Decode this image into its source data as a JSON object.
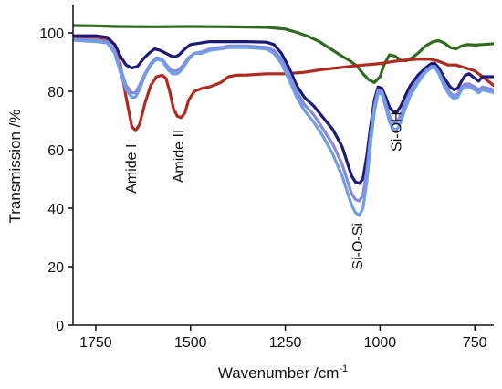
{
  "chart_data": {
    "type": "line",
    "xlabel": "Wavenumber /cm",
    "xlabel_superscript": "-1",
    "ylabel": "Transmission /%",
    "xlim": [
      1810,
      700
    ],
    "ylim": [
      0,
      110
    ],
    "x_reversed": true,
    "x_ticks": [
      1750,
      1500,
      1250,
      1000,
      750
    ],
    "x_tick_labels": [
      "1750",
      "1500",
      "1250",
      "1000",
      "750"
    ],
    "y_ticks": [
      0,
      20,
      40,
      60,
      80,
      100
    ],
    "y_tick_labels": [
      "0",
      "20",
      "40",
      "60",
      "80",
      "100"
    ],
    "grid": false,
    "annotations": [
      {
        "text": "Amide I",
        "x": 1655,
        "y": 62,
        "rotation": -90
      },
      {
        "text": "Amide II",
        "x": 1530,
        "y": 67,
        "rotation": -90
      },
      {
        "text": "Si-O-Si",
        "x": 1058,
        "y": 35,
        "rotation": -90
      },
      {
        "text": "Si-OH",
        "x": 955,
        "y": 73,
        "rotation": -90
      }
    ],
    "series": [
      {
        "color": "#2e6b1f",
        "points": [
          [
            1810,
            102.5
          ],
          [
            1750,
            102.4
          ],
          [
            1700,
            102.2
          ],
          [
            1600,
            102.1
          ],
          [
            1500,
            102.2
          ],
          [
            1400,
            102.1
          ],
          [
            1300,
            101.9
          ],
          [
            1250,
            101.3
          ],
          [
            1220,
            100.2
          ],
          [
            1190,
            98.8
          ],
          [
            1160,
            97.0
          ],
          [
            1130,
            94.5
          ],
          [
            1100,
            92.0
          ],
          [
            1080,
            90.5
          ],
          [
            1060,
            88.5
          ],
          [
            1045,
            86.0
          ],
          [
            1030,
            84.0
          ],
          [
            1015,
            83.0
          ],
          [
            1000,
            85.0
          ],
          [
            990,
            89.0
          ],
          [
            975,
            92.5
          ],
          [
            960,
            92.0
          ],
          [
            945,
            90.5
          ],
          [
            930,
            90.5
          ],
          [
            915,
            91.5
          ],
          [
            900,
            93.0
          ],
          [
            880,
            95.5
          ],
          [
            860,
            97.0
          ],
          [
            845,
            97.3
          ],
          [
            830,
            96.5
          ],
          [
            815,
            95.0
          ],
          [
            800,
            94.5
          ],
          [
            785,
            95.5
          ],
          [
            770,
            96.0
          ],
          [
            750,
            95.8
          ],
          [
            730,
            96.0
          ],
          [
            710,
            96.2
          ],
          [
            700,
            96.3
          ]
        ]
      },
      {
        "color": "#b02a1f",
        "points": [
          [
            1810,
            98.5
          ],
          [
            1750,
            98.6
          ],
          [
            1720,
            98.0
          ],
          [
            1700,
            96.0
          ],
          [
            1685,
            89.0
          ],
          [
            1670,
            78.0
          ],
          [
            1655,
            68.0
          ],
          [
            1645,
            66.5
          ],
          [
            1635,
            68.5
          ],
          [
            1620,
            76.0
          ],
          [
            1605,
            82.0
          ],
          [
            1590,
            85.0
          ],
          [
            1575,
            85.5
          ],
          [
            1565,
            84.5
          ],
          [
            1555,
            80.0
          ],
          [
            1545,
            74.0
          ],
          [
            1535,
            71.5
          ],
          [
            1525,
            71.0
          ],
          [
            1515,
            72.5
          ],
          [
            1505,
            77.0
          ],
          [
            1490,
            80.0
          ],
          [
            1470,
            81.0
          ],
          [
            1450,
            81.5
          ],
          [
            1420,
            83.0
          ],
          [
            1400,
            85.0
          ],
          [
            1380,
            85.5
          ],
          [
            1350,
            85.6
          ],
          [
            1300,
            86.0
          ],
          [
            1250,
            86.0
          ],
          [
            1200,
            86.5
          ],
          [
            1150,
            87.5
          ],
          [
            1100,
            88.2
          ],
          [
            1060,
            88.8
          ],
          [
            1000,
            89.5
          ],
          [
            950,
            90.5
          ],
          [
            900,
            91.0
          ],
          [
            870,
            91.0
          ],
          [
            850,
            90.5
          ],
          [
            820,
            89.0
          ],
          [
            800,
            89.0
          ],
          [
            775,
            88.0
          ],
          [
            750,
            87.0
          ],
          [
            720,
            84.0
          ],
          [
            700,
            82.0
          ]
        ]
      },
      {
        "color": "#1a1a78",
        "points": [
          [
            1810,
            99.0
          ],
          [
            1750,
            99.0
          ],
          [
            1720,
            98.5
          ],
          [
            1700,
            96.0
          ],
          [
            1685,
            92.0
          ],
          [
            1670,
            89.0
          ],
          [
            1655,
            88.0
          ],
          [
            1640,
            88.5
          ],
          [
            1625,
            91.0
          ],
          [
            1610,
            93.0
          ],
          [
            1595,
            94.5
          ],
          [
            1580,
            94.0
          ],
          [
            1565,
            93.0
          ],
          [
            1550,
            92.0
          ],
          [
            1540,
            91.8
          ],
          [
            1530,
            92.5
          ],
          [
            1515,
            94.5
          ],
          [
            1500,
            96.0
          ],
          [
            1450,
            97.0
          ],
          [
            1400,
            97.0
          ],
          [
            1350,
            97.0
          ],
          [
            1300,
            96.8
          ],
          [
            1280,
            96.0
          ],
          [
            1260,
            93.0
          ],
          [
            1240,
            88.0
          ],
          [
            1220,
            82.0
          ],
          [
            1200,
            78.0
          ],
          [
            1175,
            75.0
          ],
          [
            1150,
            71.0
          ],
          [
            1125,
            67.0
          ],
          [
            1100,
            61.0
          ],
          [
            1085,
            55.0
          ],
          [
            1075,
            51.0
          ],
          [
            1065,
            49.0
          ],
          [
            1055,
            48.5
          ],
          [
            1045,
            50.0
          ],
          [
            1035,
            58.0
          ],
          [
            1025,
            68.0
          ],
          [
            1015,
            77.0
          ],
          [
            1005,
            81.5
          ],
          [
            995,
            81.0
          ],
          [
            985,
            78.0
          ],
          [
            975,
            74.5
          ],
          [
            965,
            73.0
          ],
          [
            955,
            73.0
          ],
          [
            945,
            75.0
          ],
          [
            935,
            78.0
          ],
          [
            920,
            82.0
          ],
          [
            900,
            85.5
          ],
          [
            880,
            88.0
          ],
          [
            865,
            89.5
          ],
          [
            855,
            89.5
          ],
          [
            845,
            88.0
          ],
          [
            830,
            84.5
          ],
          [
            815,
            81.5
          ],
          [
            805,
            80.5
          ],
          [
            795,
            81.0
          ],
          [
            785,
            83.5
          ],
          [
            775,
            85.5
          ],
          [
            765,
            86.0
          ],
          [
            750,
            84.5
          ],
          [
            740,
            83.5
          ],
          [
            730,
            85.0
          ],
          [
            715,
            85.0
          ],
          [
            700,
            85.0
          ]
        ]
      },
      {
        "color": "#8a88dc",
        "points": [
          [
            1810,
            97.8
          ],
          [
            1750,
            97.5
          ],
          [
            1720,
            97.0
          ],
          [
            1700,
            94.0
          ],
          [
            1685,
            88.0
          ],
          [
            1670,
            82.0
          ],
          [
            1655,
            79.5
          ],
          [
            1645,
            79.5
          ],
          [
            1635,
            82.0
          ],
          [
            1620,
            86.0
          ],
          [
            1605,
            89.5
          ],
          [
            1590,
            91.5
          ],
          [
            1575,
            91.0
          ],
          [
            1560,
            88.5
          ],
          [
            1548,
            87.0
          ],
          [
            1535,
            87.0
          ],
          [
            1522,
            88.5
          ],
          [
            1505,
            91.5
          ],
          [
            1490,
            93.0
          ],
          [
            1470,
            93.5
          ],
          [
            1450,
            94.5
          ],
          [
            1420,
            95.0
          ],
          [
            1400,
            95.5
          ],
          [
            1350,
            95.5
          ],
          [
            1300,
            95.0
          ],
          [
            1280,
            94.0
          ],
          [
            1260,
            91.0
          ],
          [
            1240,
            86.0
          ],
          [
            1220,
            80.0
          ],
          [
            1200,
            75.5
          ],
          [
            1175,
            72.0
          ],
          [
            1150,
            67.0
          ],
          [
            1125,
            62.0
          ],
          [
            1100,
            55.0
          ],
          [
            1085,
            49.0
          ],
          [
            1075,
            45.0
          ],
          [
            1065,
            43.0
          ],
          [
            1055,
            42.5
          ],
          [
            1045,
            44.5
          ],
          [
            1035,
            53.0
          ],
          [
            1025,
            65.0
          ],
          [
            1015,
            75.0
          ],
          [
            1005,
            80.5
          ],
          [
            995,
            80.0
          ],
          [
            985,
            76.0
          ],
          [
            975,
            71.5
          ],
          [
            965,
            69.5
          ],
          [
            955,
            69.5
          ],
          [
            945,
            72.0
          ],
          [
            935,
            75.5
          ],
          [
            920,
            80.0
          ],
          [
            900,
            84.0
          ],
          [
            880,
            87.0
          ],
          [
            865,
            88.5
          ],
          [
            855,
            88.5
          ],
          [
            845,
            86.5
          ],
          [
            830,
            82.5
          ],
          [
            815,
            79.5
          ],
          [
            805,
            78.5
          ],
          [
            795,
            79.0
          ],
          [
            785,
            81.5
          ],
          [
            775,
            82.5
          ],
          [
            765,
            82.5
          ],
          [
            750,
            81.5
          ],
          [
            740,
            80.5
          ],
          [
            730,
            81.5
          ],
          [
            715,
            81.0
          ],
          [
            700,
            80.5
          ]
        ]
      },
      {
        "color": "#6f9fe6",
        "points": [
          [
            1810,
            97.5
          ],
          [
            1750,
            97.0
          ],
          [
            1720,
            96.5
          ],
          [
            1700,
            93.0
          ],
          [
            1685,
            86.5
          ],
          [
            1670,
            80.5
          ],
          [
            1655,
            78.0
          ],
          [
            1645,
            78.0
          ],
          [
            1635,
            80.5
          ],
          [
            1620,
            85.5
          ],
          [
            1605,
            89.0
          ],
          [
            1590,
            91.0
          ],
          [
            1575,
            90.5
          ],
          [
            1560,
            87.5
          ],
          [
            1548,
            86.0
          ],
          [
            1535,
            86.0
          ],
          [
            1522,
            87.5
          ],
          [
            1505,
            91.0
          ],
          [
            1490,
            93.0
          ],
          [
            1470,
            93.0
          ],
          [
            1450,
            94.0
          ],
          [
            1420,
            94.5
          ],
          [
            1400,
            95.0
          ],
          [
            1350,
            95.0
          ],
          [
            1300,
            94.5
          ],
          [
            1280,
            93.0
          ],
          [
            1260,
            89.5
          ],
          [
            1240,
            84.0
          ],
          [
            1220,
            78.0
          ],
          [
            1200,
            73.5
          ],
          [
            1175,
            69.5
          ],
          [
            1150,
            64.5
          ],
          [
            1125,
            58.5
          ],
          [
            1100,
            51.0
          ],
          [
            1085,
            45.0
          ],
          [
            1075,
            41.0
          ],
          [
            1065,
            38.5
          ],
          [
            1055,
            37.5
          ],
          [
            1045,
            40.0
          ],
          [
            1035,
            49.0
          ],
          [
            1025,
            62.0
          ],
          [
            1015,
            73.0
          ],
          [
            1005,
            79.5
          ],
          [
            995,
            79.0
          ],
          [
            985,
            74.5
          ],
          [
            975,
            69.5
          ],
          [
            965,
            67.0
          ],
          [
            955,
            67.0
          ],
          [
            945,
            69.5
          ],
          [
            935,
            73.5
          ],
          [
            920,
            78.5
          ],
          [
            900,
            83.0
          ],
          [
            880,
            86.5
          ],
          [
            865,
            88.0
          ],
          [
            855,
            88.0
          ],
          [
            845,
            86.0
          ],
          [
            830,
            81.5
          ],
          [
            815,
            78.5
          ],
          [
            805,
            77.5
          ],
          [
            795,
            78.0
          ],
          [
            785,
            80.5
          ],
          [
            775,
            81.5
          ],
          [
            765,
            81.5
          ],
          [
            750,
            80.5
          ],
          [
            740,
            79.5
          ],
          [
            730,
            80.5
          ],
          [
            715,
            80.0
          ],
          [
            700,
            79.5
          ]
        ]
      }
    ]
  }
}
